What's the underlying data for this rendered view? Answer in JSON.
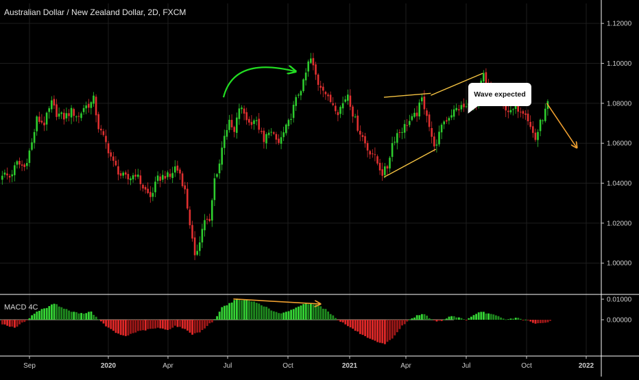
{
  "header": {
    "title": "Australian Dollar / New Zealand Dollar, 2D, FXCM"
  },
  "callout": {
    "text": "Wave expected"
  },
  "macd": {
    "label": "MACD 4C"
  },
  "colors": {
    "up": "#2ecc2e",
    "down": "#e03030",
    "annotation": "#f5c342",
    "arrow_orange": "#f0a030",
    "arrow_green": "#22dd22",
    "grid": "#1e1e1e",
    "axis_line": "#ffffff"
  },
  "chart_data": [
    {
      "type": "candlestick",
      "title": "Australian Dollar / New Zealand Dollar, 2D, FXCM",
      "ylim": [
        0.985,
        1.13
      ],
      "yticks": [
        "1.12000",
        "1.10000",
        "1.08000",
        "1.06000",
        "1.04000",
        "1.02000",
        "1.00000"
      ],
      "xticks": [
        "Sep",
        "2020",
        "Apr",
        "Jul",
        "Oct",
        "2021",
        "Apr",
        "Jul",
        "Oct",
        "2022"
      ],
      "close_path": [
        [
          0,
          1.045
        ],
        [
          3,
          1.043
        ],
        [
          6,
          1.05
        ],
        [
          9,
          1.048
        ],
        [
          12,
          1.06
        ],
        [
          14,
          1.072
        ],
        [
          17,
          1.07
        ],
        [
          20,
          1.08
        ],
        [
          22,
          1.075
        ],
        [
          25,
          1.073
        ],
        [
          28,
          1.076
        ],
        [
          31,
          1.073
        ],
        [
          33,
          1.078
        ],
        [
          36,
          1.08
        ],
        [
          37,
          1.082
        ],
        [
          39,
          1.068
        ],
        [
          42,
          1.06
        ],
        [
          45,
          1.05
        ],
        [
          48,
          1.044
        ],
        [
          51,
          1.042
        ],
        [
          54,
          1.045
        ],
        [
          57,
          1.038
        ],
        [
          60,
          1.033
        ],
        [
          63,
          1.042
        ],
        [
          66,
          1.044
        ],
        [
          68,
          1.043
        ],
        [
          70,
          1.048
        ],
        [
          72,
          1.045
        ],
        [
          74,
          1.036
        ],
        [
          76,
          1.02
        ],
        [
          78,
          1.002
        ],
        [
          80,
          1.012
        ],
        [
          82,
          1.022
        ],
        [
          84,
          1.02
        ],
        [
          86,
          1.042
        ],
        [
          88,
          1.05
        ],
        [
          90,
          1.065
        ],
        [
          92,
          1.07
        ],
        [
          94,
          1.065
        ],
        [
          96,
          1.078
        ],
        [
          98,
          1.075
        ],
        [
          100,
          1.07
        ],
        [
          102,
          1.072
        ],
        [
          104,
          1.068
        ],
        [
          106,
          1.06
        ],
        [
          108,
          1.067
        ],
        [
          110,
          1.063
        ],
        [
          112,
          1.06
        ],
        [
          114,
          1.065
        ],
        [
          116,
          1.07
        ],
        [
          118,
          1.078
        ],
        [
          120,
          1.085
        ],
        [
          122,
          1.09
        ],
        [
          124,
          1.1
        ],
        [
          125,
          1.102
        ],
        [
          126,
          1.098
        ],
        [
          128,
          1.09
        ],
        [
          130,
          1.088
        ],
        [
          132,
          1.082
        ],
        [
          134,
          1.08
        ],
        [
          136,
          1.076
        ],
        [
          138,
          1.08
        ],
        [
          140,
          1.085
        ],
        [
          142,
          1.075
        ],
        [
          144,
          1.068
        ],
        [
          146,
          1.063
        ],
        [
          148,
          1.057
        ],
        [
          150,
          1.055
        ],
        [
          152,
          1.05
        ],
        [
          154,
          1.045
        ],
        [
          156,
          1.048
        ],
        [
          158,
          1.06
        ],
        [
          160,
          1.065
        ],
        [
          162,
          1.067
        ],
        [
          164,
          1.07
        ],
        [
          166,
          1.072
        ],
        [
          168,
          1.075
        ],
        [
          170,
          1.082
        ],
        [
          172,
          1.075
        ],
        [
          174,
          1.062
        ],
        [
          176,
          1.058
        ],
        [
          178,
          1.07
        ],
        [
          180,
          1.072
        ],
        [
          182,
          1.075
        ],
        [
          184,
          1.077
        ],
        [
          186,
          1.078
        ],
        [
          188,
          1.078
        ],
        [
          190,
          1.08
        ],
        [
          192,
          1.078
        ],
        [
          194,
          1.09
        ],
        [
          195,
          1.094
        ],
        [
          196,
          1.088
        ],
        [
          198,
          1.085
        ],
        [
          200,
          1.083
        ],
        [
          202,
          1.08
        ],
        [
          204,
          1.078
        ],
        [
          206,
          1.075
        ],
        [
          208,
          1.078
        ],
        [
          210,
          1.077
        ],
        [
          212,
          1.076
        ],
        [
          214,
          1.068
        ],
        [
          216,
          1.062
        ],
        [
          218,
          1.07
        ],
        [
          220,
          1.076
        ],
        [
          221,
          1.08
        ]
      ],
      "annotations": [
        {
          "kind": "curved-arrow",
          "color": "green",
          "from": [
            90,
            1.083
          ],
          "to": [
            115,
            1.095
          ]
        },
        {
          "kind": "line",
          "color": "yellow",
          "from": [
            155,
            1.083
          ],
          "to": [
            174,
            1.085
          ]
        },
        {
          "kind": "line",
          "color": "yellow",
          "from": [
            155,
            1.043
          ],
          "to": [
            176,
            1.057
          ]
        },
        {
          "kind": "line",
          "color": "yellow",
          "from": [
            174,
            1.084
          ],
          "to": [
            195,
            1.095
          ]
        },
        {
          "kind": "arrow",
          "color": "orange",
          "from": [
            221,
            1.08
          ],
          "to": [
            233,
            1.058
          ]
        }
      ]
    },
    {
      "type": "histogram",
      "title": "MACD 4C",
      "ylim": [
        -0.017,
        0.012
      ],
      "yticks": [
        "0.01000",
        "0.00000"
      ],
      "profile": [
        [
          0,
          -0.002
        ],
        [
          5,
          -0.004
        ],
        [
          10,
          0.0
        ],
        [
          14,
          0.004
        ],
        [
          18,
          0.006
        ],
        [
          21,
          0.008
        ],
        [
          24,
          0.006
        ],
        [
          28,
          0.004
        ],
        [
          32,
          0.003
        ],
        [
          36,
          0.004
        ],
        [
          39,
          0.0
        ],
        [
          43,
          -0.004
        ],
        [
          47,
          -0.007
        ],
        [
          50,
          -0.008
        ],
        [
          54,
          -0.006
        ],
        [
          58,
          -0.005
        ],
        [
          63,
          -0.004
        ],
        [
          67,
          -0.005
        ],
        [
          70,
          -0.003
        ],
        [
          73,
          -0.004
        ],
        [
          77,
          -0.007
        ],
        [
          80,
          -0.006
        ],
        [
          83,
          -0.003
        ],
        [
          86,
          0.0
        ],
        [
          89,
          0.006
        ],
        [
          92,
          0.008
        ],
        [
          95,
          0.01
        ],
        [
          98,
          0.0095
        ],
        [
          101,
          0.009
        ],
        [
          104,
          0.008
        ],
        [
          107,
          0.006
        ],
        [
          110,
          0.004
        ],
        [
          113,
          0.003
        ],
        [
          116,
          0.004
        ],
        [
          119,
          0.006
        ],
        [
          122,
          0.0075
        ],
        [
          125,
          0.008
        ],
        [
          128,
          0.007
        ],
        [
          131,
          0.005
        ],
        [
          134,
          0.002
        ],
        [
          136,
          0.0
        ],
        [
          140,
          -0.003
        ],
        [
          144,
          -0.006
        ],
        [
          148,
          -0.009
        ],
        [
          152,
          -0.011
        ],
        [
          155,
          -0.012
        ],
        [
          158,
          -0.009
        ],
        [
          162,
          -0.003
        ],
        [
          165,
          0.0
        ],
        [
          168,
          0.002
        ],
        [
          171,
          0.003
        ],
        [
          174,
          0.0
        ],
        [
          176,
          -0.001
        ],
        [
          179,
          0.0
        ],
        [
          182,
          0.002
        ],
        [
          185,
          0.001
        ],
        [
          188,
          0.0
        ],
        [
          191,
          0.002
        ],
        [
          194,
          0.004
        ],
        [
          197,
          0.003
        ],
        [
          200,
          0.002
        ],
        [
          204,
          0.0
        ],
        [
          208,
          0.001
        ],
        [
          212,
          0.0
        ],
        [
          216,
          -0.002
        ],
        [
          220,
          -0.0015
        ],
        [
          222,
          -0.0005
        ]
      ],
      "annotations": [
        {
          "kind": "arrow",
          "color": "orange",
          "from": [
            94,
            0.0101
          ],
          "to": [
            129,
            0.0077
          ]
        }
      ]
    }
  ]
}
